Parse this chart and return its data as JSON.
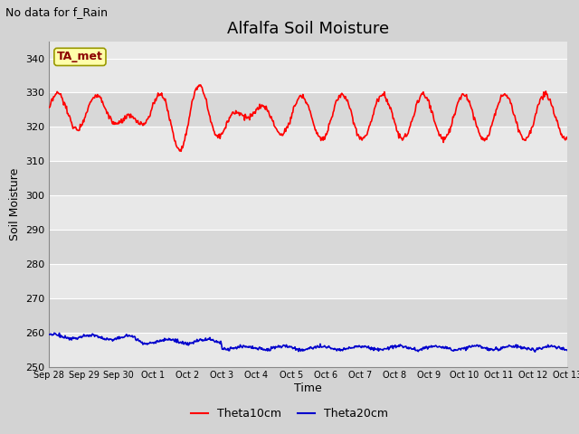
{
  "title": "Alfalfa Soil Moisture",
  "subtitle": "No data for f_Rain",
  "ylabel": "Soil Moisture",
  "xlabel": "Time",
  "ylim": [
    250,
    345
  ],
  "yticks": [
    250,
    260,
    270,
    280,
    290,
    300,
    310,
    320,
    330,
    340
  ],
  "xtick_labels": [
    "Sep 28",
    "Sep 29",
    "Sep 30",
    "Oct 1",
    "Oct 2",
    "Oct 3",
    "Oct 4",
    "Oct 5",
    "Oct 6",
    "Oct 7",
    "Oct 8",
    "Oct 9",
    "Oct 10",
    "Oct 11",
    "Oct 12",
    "Oct 13"
  ],
  "ta_met_label": "TA_met",
  "legend_entries": [
    "Theta10cm",
    "Theta20cm"
  ],
  "line_colors": [
    "#ff0000",
    "#0000cc"
  ],
  "band_colors": [
    "#e8e8e8",
    "#d8d8d8"
  ],
  "background_color": "#d3d3d3",
  "title_fontsize": 13,
  "axis_label_fontsize": 9,
  "tick_fontsize": 8,
  "subtitle_fontsize": 9,
  "legend_fontsize": 9
}
